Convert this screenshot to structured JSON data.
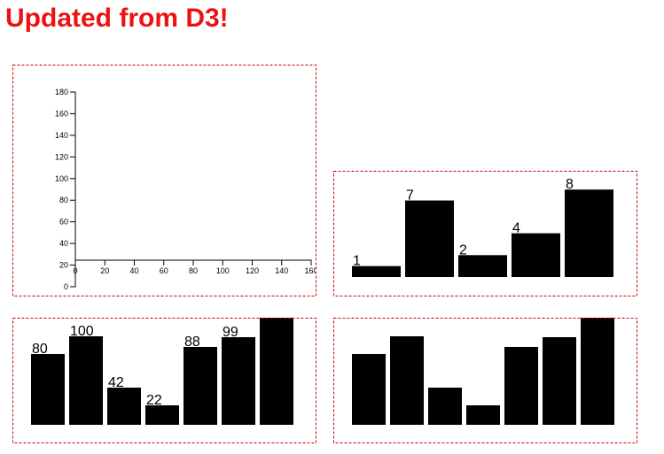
{
  "title": "Updated from D3!",
  "chart_data": [
    {
      "type": "axes",
      "xlim": [
        0,
        160
      ],
      "xticks": [
        0,
        20,
        40,
        60,
        80,
        100,
        120,
        140,
        160
      ],
      "ylim": [
        0,
        180
      ],
      "yticks": [
        0,
        20,
        40,
        60,
        80,
        100,
        120,
        140,
        160,
        180
      ]
    },
    {
      "type": "bar",
      "values": [
        1,
        7,
        2,
        4,
        8
      ],
      "color": "#000000"
    },
    {
      "type": "bar",
      "values": [
        80,
        100,
        42,
        22,
        88,
        99,
        125
      ],
      "value_labels": [
        "80",
        "100",
        "42",
        "22",
        "88",
        "99",
        null
      ],
      "color": "#000000"
    },
    {
      "type": "bar",
      "values": [
        80,
        100,
        42,
        22,
        88,
        99,
        125
      ],
      "color": "#000000"
    }
  ]
}
